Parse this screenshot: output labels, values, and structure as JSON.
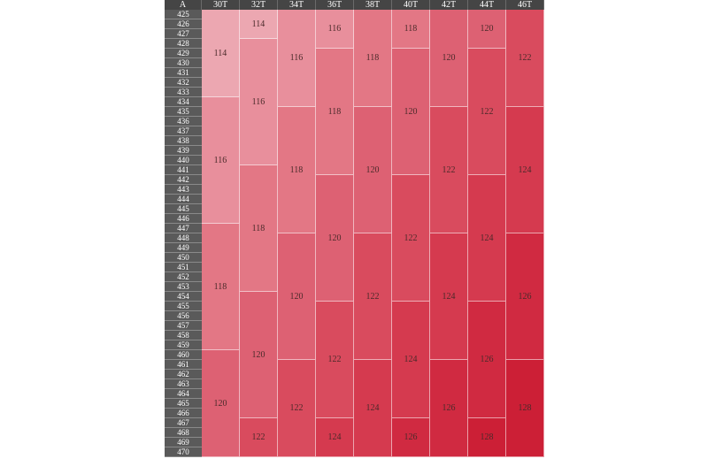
{
  "header": {
    "first": "A",
    "columns": [
      "30T",
      "32T",
      "34T",
      "36T",
      "38T",
      "40T",
      "42T",
      "44T",
      "46T"
    ]
  },
  "rows": [
    "425",
    "426",
    "427",
    "428",
    "429",
    "430",
    "431",
    "432",
    "433",
    "434",
    "435",
    "436",
    "437",
    "438",
    "439",
    "440",
    "441",
    "442",
    "443",
    "444",
    "445",
    "446",
    "447",
    "448",
    "449",
    "450",
    "451",
    "452",
    "453",
    "454",
    "455",
    "456",
    "457",
    "458",
    "459",
    "460",
    "461",
    "462",
    "463",
    "464",
    "465",
    "466",
    "467",
    "468",
    "469",
    "470"
  ],
  "columns": [
    {
      "segments": [
        {
          "from": "425",
          "to": "433",
          "value": "114"
        },
        {
          "from": "434",
          "to": "446",
          "value": "116"
        },
        {
          "from": "447",
          "to": "459",
          "value": "118"
        },
        {
          "from": "460",
          "to": "470",
          "value": "120"
        }
      ]
    },
    {
      "segments": [
        {
          "from": "425",
          "to": "427",
          "value": "114"
        },
        {
          "from": "428",
          "to": "440",
          "value": "116"
        },
        {
          "from": "441",
          "to": "453",
          "value": "118"
        },
        {
          "from": "454",
          "to": "466",
          "value": "120"
        },
        {
          "from": "467",
          "to": "470",
          "value": "122"
        }
      ]
    },
    {
      "segments": [
        {
          "from": "425",
          "to": "434",
          "value": "116"
        },
        {
          "from": "435",
          "to": "447",
          "value": "118"
        },
        {
          "from": "448",
          "to": "460",
          "value": "120"
        },
        {
          "from": "461",
          "to": "470",
          "value": "122"
        }
      ]
    },
    {
      "segments": [
        {
          "from": "425",
          "to": "428",
          "value": "116"
        },
        {
          "from": "429",
          "to": "441",
          "value": "118"
        },
        {
          "from": "442",
          "to": "454",
          "value": "120"
        },
        {
          "from": "455",
          "to": "466",
          "value": "122"
        },
        {
          "from": "467",
          "to": "470",
          "value": "124"
        }
      ]
    },
    {
      "segments": [
        {
          "from": "425",
          "to": "434",
          "value": "118"
        },
        {
          "from": "435",
          "to": "447",
          "value": "120"
        },
        {
          "from": "448",
          "to": "460",
          "value": "122"
        },
        {
          "from": "461",
          "to": "470",
          "value": "124"
        }
      ]
    },
    {
      "segments": [
        {
          "from": "425",
          "to": "428",
          "value": "118"
        },
        {
          "from": "429",
          "to": "441",
          "value": "120"
        },
        {
          "from": "442",
          "to": "454",
          "value": "122"
        },
        {
          "from": "455",
          "to": "466",
          "value": "124"
        },
        {
          "from": "467",
          "to": "470",
          "value": "126"
        }
      ]
    },
    {
      "segments": [
        {
          "from": "425",
          "to": "434",
          "value": "120"
        },
        {
          "from": "435",
          "to": "447",
          "value": "122"
        },
        {
          "from": "448",
          "to": "460",
          "value": "124"
        },
        {
          "from": "461",
          "to": "470",
          "value": "126"
        }
      ]
    },
    {
      "segments": [
        {
          "from": "425",
          "to": "428",
          "value": "120"
        },
        {
          "from": "429",
          "to": "441",
          "value": "122"
        },
        {
          "from": "442",
          "to": "454",
          "value": "124"
        },
        {
          "from": "455",
          "to": "466",
          "value": "126"
        },
        {
          "from": "467",
          "to": "470",
          "value": "128"
        }
      ]
    },
    {
      "segments": [
        {
          "from": "425",
          "to": "434",
          "value": "122"
        },
        {
          "from": "435",
          "to": "447",
          "value": "124"
        },
        {
          "from": "448",
          "to": "460",
          "value": "126"
        },
        {
          "from": "461",
          "to": "470",
          "value": "128"
        }
      ]
    }
  ],
  "colors": {
    "114": "#eca7b1",
    "116": "#e88f9c",
    "118": "#e37785",
    "120": "#dd6173",
    "122": "#d94b5e",
    "124": "#d53a4f",
    "126": "#d02a41",
    "128": "#cc1f36"
  }
}
